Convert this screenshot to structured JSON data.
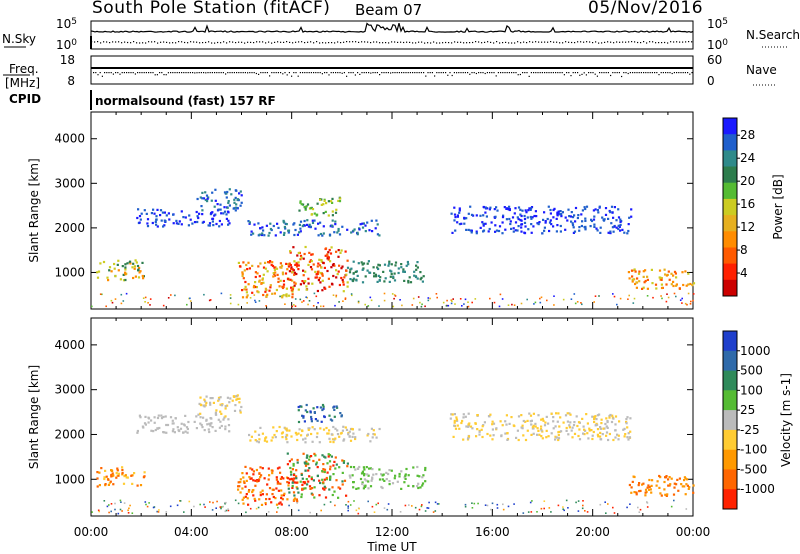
{
  "header": {
    "title": "South Pole Station (fitACF)",
    "beam": "Beam 07",
    "date": "05/Nov/2016"
  },
  "chart_data": [
    {
      "type": "line",
      "name": "noise",
      "left_label": "N.Sky",
      "right_label": "N.Search",
      "left_ticks": [
        "10^5",
        "10^0"
      ],
      "right_ticks": [
        "10^5",
        "10^0"
      ]
    },
    {
      "type": "line",
      "name": "frequency-nave",
      "left_label": "Freq.",
      "left_unit": "[MHz]",
      "left_ticks": [
        "18",
        "8"
      ],
      "right_label": "Nave",
      "right_ticks": [
        "60",
        "0"
      ]
    },
    {
      "type": "table",
      "name": "cpid",
      "label": "CPID",
      "program": "normalsound (fast) 157 RF"
    },
    {
      "type": "heatmap",
      "name": "power",
      "ylabel": "Slant Range [km]",
      "yticks": [
        1000,
        2000,
        3000,
        4000
      ],
      "ylim": [
        180,
        4600
      ],
      "colorbar_label": "Power [dB]",
      "colorbar_ticks": [
        "4",
        "8",
        "12",
        "16",
        "20",
        "24",
        "28"
      ],
      "colorbar_colors": [
        "#1a1aff",
        "#1f5fcc",
        "#2f8a8a",
        "#2d7d4d",
        "#55bb33",
        "#cccc22",
        "#e6b020",
        "#ff8c00",
        "#ff5a00",
        "#ff2000",
        "#cc0000"
      ]
    },
    {
      "type": "heatmap",
      "name": "velocity",
      "ylabel": "Slant Range [km]",
      "yticks": [
        1000,
        2000,
        3000,
        4000
      ],
      "ylim": [
        180,
        4600
      ],
      "xlabel": "Time UT",
      "xticks": [
        "00:00",
        "04:00",
        "08:00",
        "12:00",
        "16:00",
        "20:00",
        "00:00"
      ],
      "colorbar_label": "Velocity [m s-1]",
      "colorbar_ticks": [
        "1000",
        "500",
        "100",
        "25",
        "-25",
        "-100",
        "-500",
        "-1000"
      ],
      "colorbar_colors": [
        "#1f3fcc",
        "#2f6aaa",
        "#2f8a5a",
        "#55bb33",
        "#bbbbbb",
        "#ffcc33",
        "#ff9900",
        "#ff6600",
        "#ff2200"
      ]
    }
  ]
}
